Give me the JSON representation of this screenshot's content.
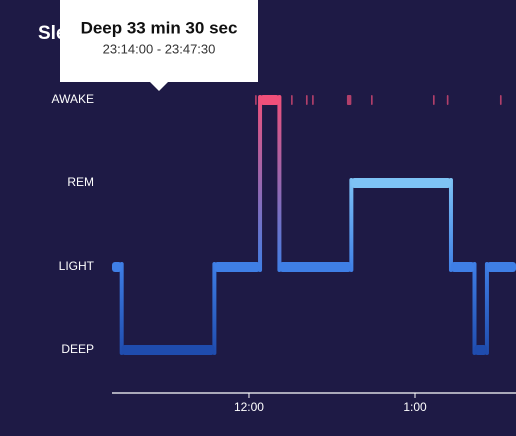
{
  "chart_data": {
    "type": "hypnogram",
    "title": "Sle",
    "stages": [
      "AWAKE",
      "REM",
      "LIGHT",
      "DEEP"
    ],
    "stage_colors": {
      "AWAKE": "#f0507a",
      "REM": "#7ec3f5",
      "LIGHT": "#3f7fe6",
      "DEEP": "#1f4cae"
    },
    "segments": [
      {
        "stage": "LIGHT",
        "start": -49.5,
        "end": -46
      },
      {
        "stage": "DEEP",
        "start": -46,
        "end": -12.5
      },
      {
        "stage": "LIGHT",
        "start": -12.5,
        "end": 4
      },
      {
        "stage": "AWAKE",
        "start": 4,
        "end": 11
      },
      {
        "stage": "LIGHT",
        "start": 11,
        "end": 37
      },
      {
        "stage": "REM",
        "start": 37,
        "end": 73
      },
      {
        "stage": "LIGHT",
        "start": 73,
        "end": 81.5
      },
      {
        "stage": "DEEP",
        "start": 81.5,
        "end": 86
      },
      {
        "stage": "LIGHT",
        "start": 86,
        "end": 96.5
      }
    ],
    "brief_awakenings": [
      {
        "start": 2.2,
        "end": 2.8
      },
      {
        "start": 15.2,
        "end": 15.8
      },
      {
        "start": 20.6,
        "end": 21.2
      },
      {
        "start": 22.8,
        "end": 23.4
      },
      {
        "start": 35.4,
        "end": 37
      },
      {
        "start": 44.1,
        "end": 44.7
      },
      {
        "start": 66.5,
        "end": 67.1
      },
      {
        "start": 71.5,
        "end": 72.1
      },
      {
        "start": 90.7,
        "end": 91.3
      }
    ],
    "xlim": [
      -49.5,
      96.5
    ],
    "xticks": [
      {
        "value": 0,
        "label": "12:00"
      },
      {
        "value": 60,
        "label": "1:00"
      }
    ],
    "tooltip": {
      "title": "Deep 33 min 30 sec",
      "range": "23:14:00 - 23:47:30"
    }
  }
}
